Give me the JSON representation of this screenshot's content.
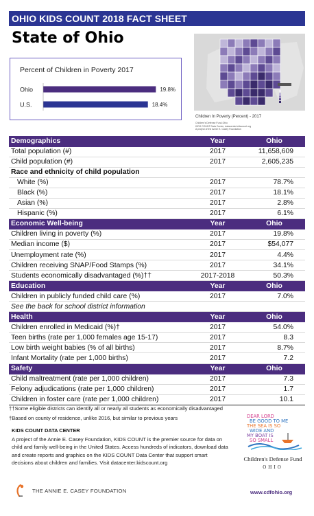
{
  "banner": "OHIO KIDS COUNT 2018 FACT SHEET",
  "state": "State of Ohio",
  "chart_data": {
    "type": "bar",
    "title": "Percent of Children in Poverty 2017",
    "categories": [
      "Ohio",
      "U.S."
    ],
    "values": [
      19.8,
      18.4
    ],
    "value_labels": [
      "19.8%",
      "18.4%"
    ],
    "xlabel": "",
    "ylabel": "",
    "xlim": [
      0,
      20
    ],
    "colors": [
      "#4b2d7f",
      "#2b3593"
    ]
  },
  "map": {
    "caption": "Children In Poverty (Percent) - 2017",
    "source_lines": [
      "Children's Defense Fund-Ohio",
      "KIDS COUNT Data Center, datacenter.kidscount.org",
      "A project of the Annie E. Casey Foundation"
    ],
    "colors": [
      "#f1eef6",
      "#bfb6d9",
      "#8c7bb8",
      "#5d4a93",
      "#3a2b6b"
    ]
  },
  "columns": {
    "year": "Year",
    "value": "Ohio"
  },
  "sections": [
    {
      "title": "Demographics",
      "rows": [
        {
          "label": "Total population (#)",
          "year": "2017",
          "value": "11,658,609"
        },
        {
          "label": "Child population (#)",
          "year": "2017",
          "value": "2,605,235"
        },
        {
          "label": "Race and ethnicity of child population",
          "kind": "sub"
        },
        {
          "label": "White (%)",
          "year": "2017",
          "value": "78.7%",
          "kind": "ind"
        },
        {
          "label": "Black (%)",
          "year": "2017",
          "value": "18.1%",
          "kind": "ind"
        },
        {
          "label": "Asian (%)",
          "year": "2017",
          "value": "2.8%",
          "kind": "ind"
        },
        {
          "label": "Hispanic (%)",
          "year": "2017",
          "value": "6.1%",
          "kind": "ind"
        }
      ]
    },
    {
      "title": "Economic Well-being",
      "rows": [
        {
          "label": "Children living in poverty (%)",
          "year": "2017",
          "value": "19.8%"
        },
        {
          "label": "Median income ($)",
          "year": "2017",
          "value": "$54,077"
        },
        {
          "label": "Unemployment rate (%)",
          "year": "2017",
          "value": "4.4%"
        },
        {
          "label": "Children receiving SNAP/Food Stamps (%)",
          "year": "2017",
          "value": "34.1%"
        },
        {
          "label": "Students economically disadvantaged (%)††",
          "year": "2017-2018",
          "value": "50.3%"
        }
      ]
    },
    {
      "title": "Education",
      "rows": [
        {
          "label": "Children in publicly funded child care (%)",
          "year": "2017",
          "value": "7.0%"
        },
        {
          "label": "See the back for school district information",
          "kind": "note"
        }
      ]
    },
    {
      "title": "Health",
      "rows": [
        {
          "label": "Children enrolled in Medicaid (%)†",
          "year": "2017",
          "value": "54.0%"
        },
        {
          "label": "Teen births (rate per 1,000 females age 15-17)",
          "year": "2017",
          "value": "8.3"
        },
        {
          "label": "Low birth weight babies (% of all births)",
          "year": "2017",
          "value": "8.7%"
        },
        {
          "label": "Infant Mortality (rate per 1,000 births)",
          "year": "2017",
          "value": "7.2"
        }
      ]
    },
    {
      "title": "Safety",
      "rows": [
        {
          "label": "Child maltreatment (rate per 1,000 children)",
          "year": "2017",
          "value": "7.3"
        },
        {
          "label": "Felony adjudications (rate per 1,000 children)",
          "year": "2017",
          "value": "1.7"
        },
        {
          "label": "Children in foster care (rate per 1,000 children)",
          "year": "2017",
          "value": "10.1"
        }
      ]
    }
  ],
  "footnotes": {
    "double_dagger": "††Some eligible districts can identify all or nearly all students as economically disadvantaged",
    "dagger": "†Based on county of residence, unlike 2016, but similar to previous years"
  },
  "data_center": {
    "heading": "KIDS COUNT DATA CENTER",
    "body": "A project of the Annie E. Casey Foundation, KIDS COUNT is the premier source for data on child and family well-being in the United States. Access hundreds of indicators, download data and create reports and graphics on the KIDS COUNT Data Center that support smart decisions about children and families.  Visit datacenter.kidscount.org"
  },
  "cdf": {
    "art_lines": [
      "DEAR LORD",
      "BE GOOD TO ME",
      "THE SEA IS SO",
      "WIDE AND",
      "MY BOAT IS",
      "SO SMALL"
    ],
    "name": "Children's Defense Fund",
    "state": "OHIO",
    "url": "www.cdfohio.org"
  },
  "aecf": {
    "name": "THE ANNIE E. CASEY FOUNDATION"
  }
}
